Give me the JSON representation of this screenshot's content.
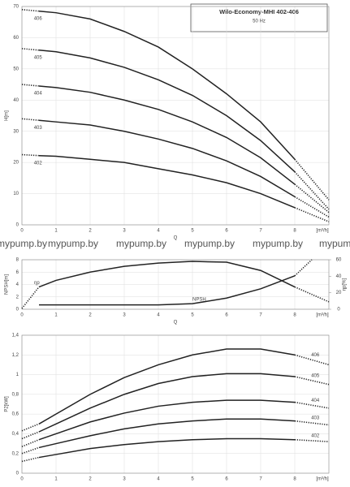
{
  "watermark": "mypump.by",
  "chart_data": [
    {
      "type": "line",
      "title": "Wilo-Economy-MHI 402-406",
      "subtitle": "50 Hz",
      "y_label": "H[m]",
      "x_label": "Q",
      "x_unit": "[m³/h]",
      "x": [
        0,
        0.5,
        1,
        2,
        3,
        4,
        5,
        6,
        7,
        8,
        9
      ],
      "solid_range": [
        0.5,
        8
      ],
      "xlim": [
        0,
        9
      ],
      "xticks": [
        0,
        1,
        2,
        3,
        4,
        5,
        6,
        7,
        8
      ],
      "ylim": [
        0,
        70
      ],
      "yticks": [
        0,
        10,
        20,
        30,
        40,
        50,
        60,
        70
      ],
      "grid": true,
      "label_at": "left",
      "series": [
        {
          "name": "406",
          "color": "#222222",
          "values": [
            69,
            68.5,
            68,
            66,
            62,
            57,
            50,
            42,
            33,
            21,
            8
          ]
        },
        {
          "name": "405",
          "color": "#222222",
          "values": [
            56.5,
            56,
            55.5,
            53.5,
            50.5,
            46.5,
            41.5,
            35,
            27,
            17,
            5
          ]
        },
        {
          "name": "404",
          "color": "#222222",
          "values": [
            45,
            44.5,
            44,
            42.5,
            40,
            37,
            33,
            28,
            21.5,
            13,
            4
          ]
        },
        {
          "name": "403",
          "color": "#222222",
          "values": [
            34,
            33.5,
            33,
            32,
            30,
            27.5,
            24.5,
            20.5,
            15.5,
            9,
            2.5
          ]
        },
        {
          "name": "402",
          "color": "#222222",
          "values": [
            22.5,
            22.2,
            22,
            21,
            20,
            18,
            16,
            13.5,
            10,
            5.5,
            1
          ]
        }
      ]
    },
    {
      "type": "line",
      "y_label": "NPSH[m]",
      "y2_label": "ηp[%]",
      "x_label": "Q",
      "x_unit": "[m³/h]",
      "x": [
        0,
        0.5,
        1,
        2,
        3,
        4,
        5,
        6,
        7,
        8,
        9
      ],
      "solid_range": [
        0.5,
        8
      ],
      "xlim": [
        0,
        9
      ],
      "xticks": [
        0,
        1,
        2,
        3,
        4,
        5,
        6,
        7,
        8
      ],
      "ylim": [
        0,
        8
      ],
      "yticks": [
        0,
        2,
        4,
        6,
        8
      ],
      "y2lim": [
        0,
        60
      ],
      "y2ticks": [
        0,
        20,
        40,
        60
      ],
      "grid": true,
      "label_at": "inline",
      "series": [
        {
          "name": "ηp",
          "color": "#222222",
          "axis": "y2",
          "values": [
            1,
            27,
            35,
            45,
            52,
            56,
            58,
            57,
            47,
            27,
            9
          ]
        },
        {
          "name": "NPSH",
          "color": "#222222",
          "x": [
            0.5,
            1,
            2,
            3,
            4,
            5,
            6,
            7,
            8,
            8.5
          ],
          "values": [
            0.7,
            0.7,
            0.7,
            0.7,
            0.7,
            0.9,
            1.8,
            3.3,
            5.4,
            8
          ]
        }
      ]
    },
    {
      "type": "line",
      "y_label": "P2[kW]",
      "x_unit": "[m³/h]",
      "x": [
        0,
        0.5,
        1,
        2,
        3,
        4,
        5,
        6,
        7,
        8,
        9
      ],
      "solid_range": [
        0.5,
        8
      ],
      "xlim": [
        0,
        9
      ],
      "xticks": [
        0,
        1,
        2,
        3,
        4,
        5,
        6,
        7,
        8
      ],
      "ylim": [
        0,
        1.4
      ],
      "yticks": [
        0,
        {
          "value": 0.2,
          "label": "0,2"
        },
        {
          "value": 0.4,
          "label": "0,4"
        },
        {
          "value": 0.6,
          "label": "0,6"
        },
        {
          "value": 0.8,
          "label": "0,8"
        },
        1,
        {
          "value": 1.2,
          "label": "1,2"
        },
        {
          "value": 1.4,
          "label": "1,4"
        }
      ],
      "grid": true,
      "label_at": "right",
      "series": [
        {
          "name": "406",
          "color": "#222222",
          "values": [
            0.43,
            0.5,
            0.6,
            0.8,
            0.97,
            1.1,
            1.2,
            1.26,
            1.26,
            1.2,
            1.1
          ]
        },
        {
          "name": "405",
          "color": "#222222",
          "values": [
            0.35,
            0.42,
            0.5,
            0.66,
            0.8,
            0.91,
            0.98,
            1.01,
            1.01,
            0.98,
            0.9
          ]
        },
        {
          "name": "404",
          "color": "#222222",
          "values": [
            0.27,
            0.34,
            0.4,
            0.52,
            0.61,
            0.68,
            0.72,
            0.74,
            0.74,
            0.72,
            0.66
          ]
        },
        {
          "name": "403",
          "color": "#222222",
          "values": [
            0.2,
            0.26,
            0.3,
            0.38,
            0.45,
            0.5,
            0.53,
            0.55,
            0.55,
            0.53,
            0.49
          ]
        },
        {
          "name": "402",
          "color": "#222222",
          "values": [
            0.12,
            0.16,
            0.19,
            0.25,
            0.29,
            0.32,
            0.34,
            0.35,
            0.35,
            0.34,
            0.32
          ]
        }
      ]
    }
  ]
}
